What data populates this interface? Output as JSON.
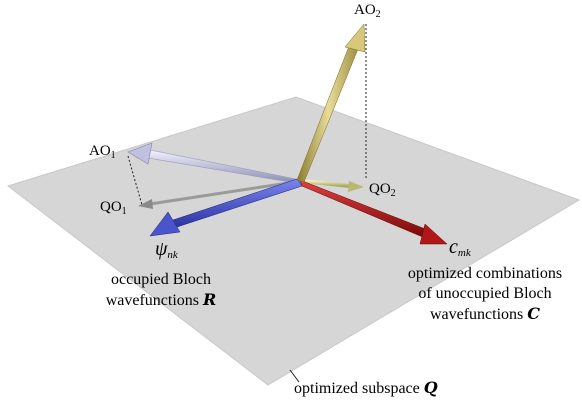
{
  "diagram": {
    "vectors": {
      "ao2": {
        "name": "AO",
        "sub": "2"
      },
      "ao1": {
        "name": "AO",
        "sub": "1"
      },
      "qo1": {
        "name": "QO",
        "sub": "1"
      },
      "qo2": {
        "name": "QO",
        "sub": "2"
      },
      "psi": {
        "symbol": "ψ",
        "sub": "nk"
      },
      "c": {
        "symbol": "c",
        "sub": "mk"
      }
    },
    "captions": {
      "occupied_line1": "occupied Bloch",
      "occupied_line2": "wavefunctions",
      "occupied_symbol": "R",
      "unoccupied_line1": "optimized combinations",
      "unoccupied_line2": "of unoccupied Bloch",
      "unoccupied_line3": "wavefunctions",
      "unoccupied_symbol": "C",
      "subspace": "optimized subspace",
      "subspace_symbol": "Q"
    },
    "colors": {
      "plane": "#d6d6d6",
      "ao2_arrow": "#c8b870",
      "ao1_arrow": "#c8c8e0",
      "qo1_arrow": "#9a9a9a",
      "qo2_arrow": "#c8c890",
      "psi_arrow": "#4a55cc",
      "c_arrow": "#b01818"
    }
  }
}
